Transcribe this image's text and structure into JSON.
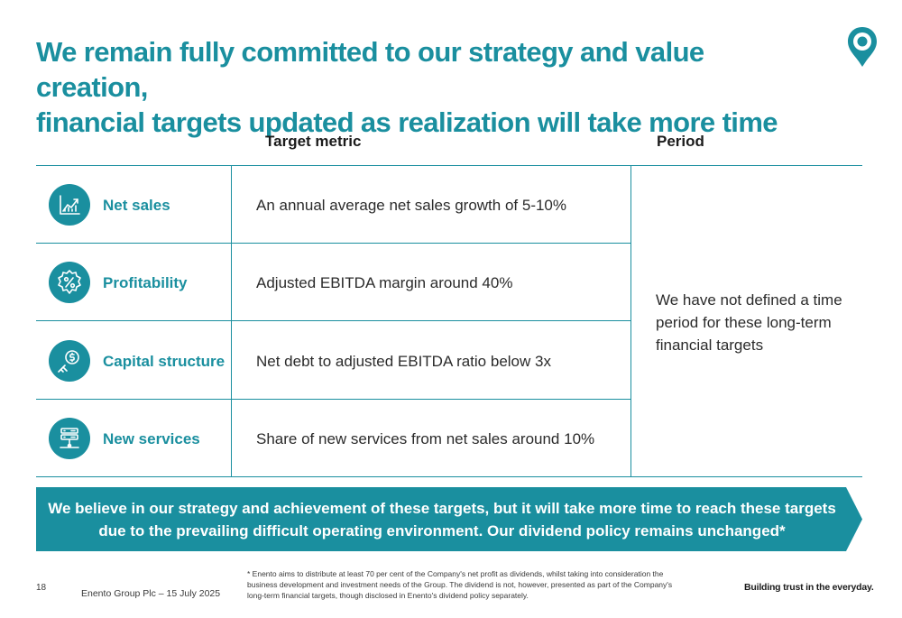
{
  "slide": {
    "title_line1": "We remain fully committed to our strategy and value creation,",
    "title_line2": "financial targets updated as realization will take more time"
  },
  "table": {
    "header_metric": "Target metric",
    "header_period": "Period",
    "rows": [
      {
        "label": "Net sales",
        "metric": "An annual average net sales growth of 5-10%",
        "icon": "growth-chart-icon"
      },
      {
        "label": "Profitability",
        "metric": "Adjusted EBITDA margin around 40%",
        "icon": "percent-badge-icon"
      },
      {
        "label": "Capital structure",
        "metric": "Net debt to adjusted EBITDA ratio below 3x",
        "icon": "dollar-coin-icon"
      },
      {
        "label": "New services",
        "metric": "Share of new services from net sales around 10%",
        "icon": "server-icon"
      }
    ],
    "period_text": "We have not defined a time period for these long-term financial targets"
  },
  "banner": {
    "text": "We believe in our strategy and achievement of these targets, but it will take more time to reach these targets due to the prevailing difficult operating environment. Our dividend policy remains unchanged*"
  },
  "footer": {
    "page_number": "18",
    "company_date": "Enento Group Plc – 15 July 2025",
    "footnote": "* Enento aims to distribute at least 70 per cent of the Company's net profit as dividends, whilst taking into consideration the business development and investment needs of the Group. The dividend is not, however, presented as part of the Company's long-term financial targets, though disclosed in Enento's dividend policy separately.",
    "tagline": "Building trust in the everyday."
  },
  "colors": {
    "accent": "#1a8f9f",
    "text": "#2b2b2b"
  }
}
